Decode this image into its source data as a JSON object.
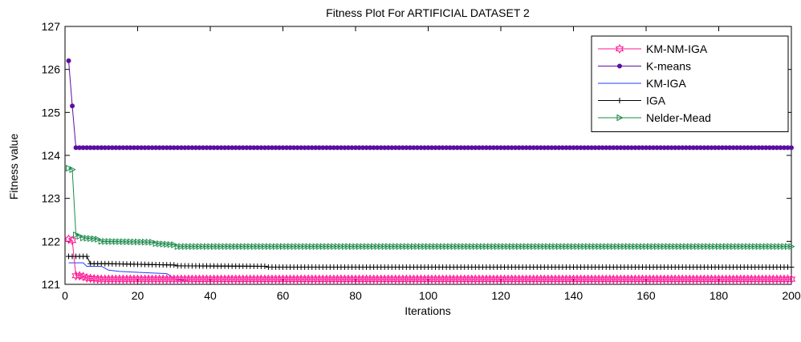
{
  "chart_data": {
    "type": "line",
    "title": "Fitness Plot For ARTIFICIAL DATASET 2",
    "xlabel": "Iterations",
    "ylabel": "Fitness value",
    "xlim": [
      0,
      200
    ],
    "ylim": [
      121,
      127
    ],
    "xticks": [
      0,
      20,
      40,
      60,
      80,
      100,
      120,
      140,
      160,
      180,
      200
    ],
    "yticks": [
      121,
      122,
      123,
      124,
      125,
      126,
      127
    ],
    "grid": false,
    "legend_position": "top-right",
    "series": [
      {
        "name": "KM-NM-IGA",
        "color": "#ff1493",
        "marker": "hexagram",
        "x": [
          1,
          2,
          3,
          4,
          5,
          6,
          8,
          10,
          200
        ],
        "y": [
          122.05,
          122.02,
          121.2,
          121.2,
          121.18,
          121.15,
          121.13,
          121.12,
          121.12
        ]
      },
      {
        "name": "K-means",
        "color": "#5a0fa0",
        "marker": "dot",
        "x": [
          1,
          2,
          3,
          200
        ],
        "y": [
          126.2,
          125.15,
          124.18,
          124.18
        ]
      },
      {
        "name": "KM-IGA",
        "color": "#1f3fff",
        "marker": "none",
        "x": [
          1,
          5,
          6,
          10,
          12,
          15,
          20,
          28,
          29,
          30,
          35,
          200
        ],
        "y": [
          121.5,
          121.5,
          121.42,
          121.42,
          121.33,
          121.3,
          121.28,
          121.25,
          121.2,
          121.12,
          121.07,
          121.07
        ]
      },
      {
        "name": "IGA",
        "color": "#000000",
        "marker": "plus",
        "x": [
          1,
          6,
          7,
          12,
          30,
          31,
          55,
          56,
          200
        ],
        "y": [
          121.65,
          121.65,
          121.48,
          121.48,
          121.45,
          121.43,
          121.42,
          121.4,
          121.4
        ]
      },
      {
        "name": "Nelder-Mead",
        "color": "#1a8a4a",
        "marker": "triangle-right",
        "x": [
          1,
          2,
          3,
          4,
          5,
          9,
          10,
          24,
          25,
          30,
          31,
          200
        ],
        "y": [
          123.7,
          123.67,
          122.15,
          122.12,
          122.08,
          122.05,
          122.0,
          121.98,
          121.95,
          121.92,
          121.88,
          121.88
        ]
      }
    ]
  }
}
